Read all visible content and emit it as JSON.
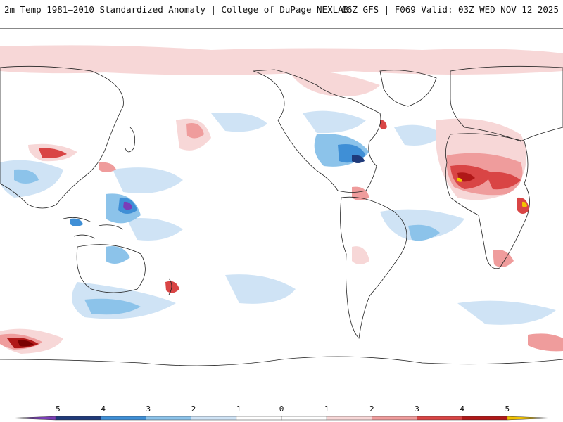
{
  "header": {
    "title_left": "2m Temp 1981–2010 Standardized Anomaly | College of DuPage NEXLAB",
    "title_right": "06Z GFS | F069 Valid: 03Z WED NOV 12 2025"
  },
  "colors": {
    "background": "#ffffff",
    "coastline": "#222222",
    "neg5": "#7a3db8",
    "neg4": "#1f3a7a",
    "neg3": "#3f8fd6",
    "neg2": "#8cc3ea",
    "neg1": "#cfe3f5",
    "zero": "#ffffff",
    "pos1": "#f7d7d7",
    "pos2": "#ef9c9c",
    "pos3": "#d94545",
    "pos4": "#b01818",
    "pos5": "#7a0000",
    "pos_extreme": "#f2c200"
  },
  "colorbar": {
    "ticks": [
      "−5",
      "−4",
      "−3",
      "−2",
      "−1",
      "0",
      "1",
      "2",
      "3",
      "4",
      "5"
    ],
    "tick_values": [
      -5,
      -4,
      -3,
      -2,
      -1,
      0,
      1,
      2,
      3,
      4,
      5
    ],
    "range": [
      -6,
      6
    ]
  },
  "map": {
    "projection": "equirectangular, centered near 150°W",
    "anomaly_regions": [
      {
        "region": "Sahara / Sahel",
        "anomaly": 4
      },
      {
        "region": "East Africa",
        "anomaly": 4
      },
      {
        "region": "Antarctic coast (far west)",
        "anomaly": 5
      },
      {
        "region": "Gulf of Mexico / SE US",
        "anomaly": -3
      },
      {
        "region": "Philippine Sea",
        "anomaly": -4
      },
      {
        "region": "Central Asia / Tibet",
        "anomaly": 3
      },
      {
        "region": "Southern Ocean",
        "anomaly": -2
      }
    ]
  }
}
